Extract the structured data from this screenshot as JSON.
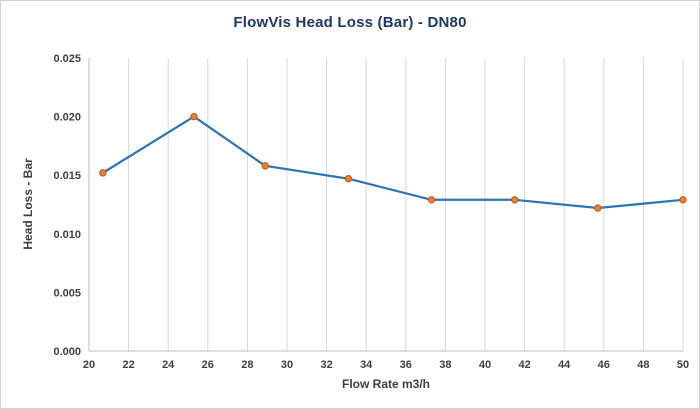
{
  "chart_data": {
    "type": "line",
    "title": "FlowVis Head Loss  (Bar) - DN80",
    "xlabel": "Flow Rate  m3/h",
    "ylabel": "Head Loss - Bar",
    "x": [
      20.7,
      25.3,
      28.9,
      33.1,
      37.3,
      41.5,
      45.7,
      50.0
    ],
    "y": [
      0.0152,
      0.02,
      0.0158,
      0.0147,
      0.0129,
      0.0129,
      0.0122,
      0.0129
    ],
    "xlim": [
      20,
      50
    ],
    "ylim": [
      0,
      0.025
    ],
    "xtick_step": 2,
    "ytick_step": 0.005,
    "y_decimals": 3,
    "grid": "vertical-only",
    "legend": "none",
    "colors": {
      "title": "#1f3864",
      "axis_label": "#3f3f3f",
      "tick_label": "#3f3f3f",
      "grid": "#d9d9d9",
      "axis_line": "#bfbfbf",
      "line": "#2e75b6",
      "marker_fill": "#ed7d31",
      "marker_border": "#b25c1e",
      "background": "#ffffff",
      "border": "#d2d2d2"
    }
  }
}
